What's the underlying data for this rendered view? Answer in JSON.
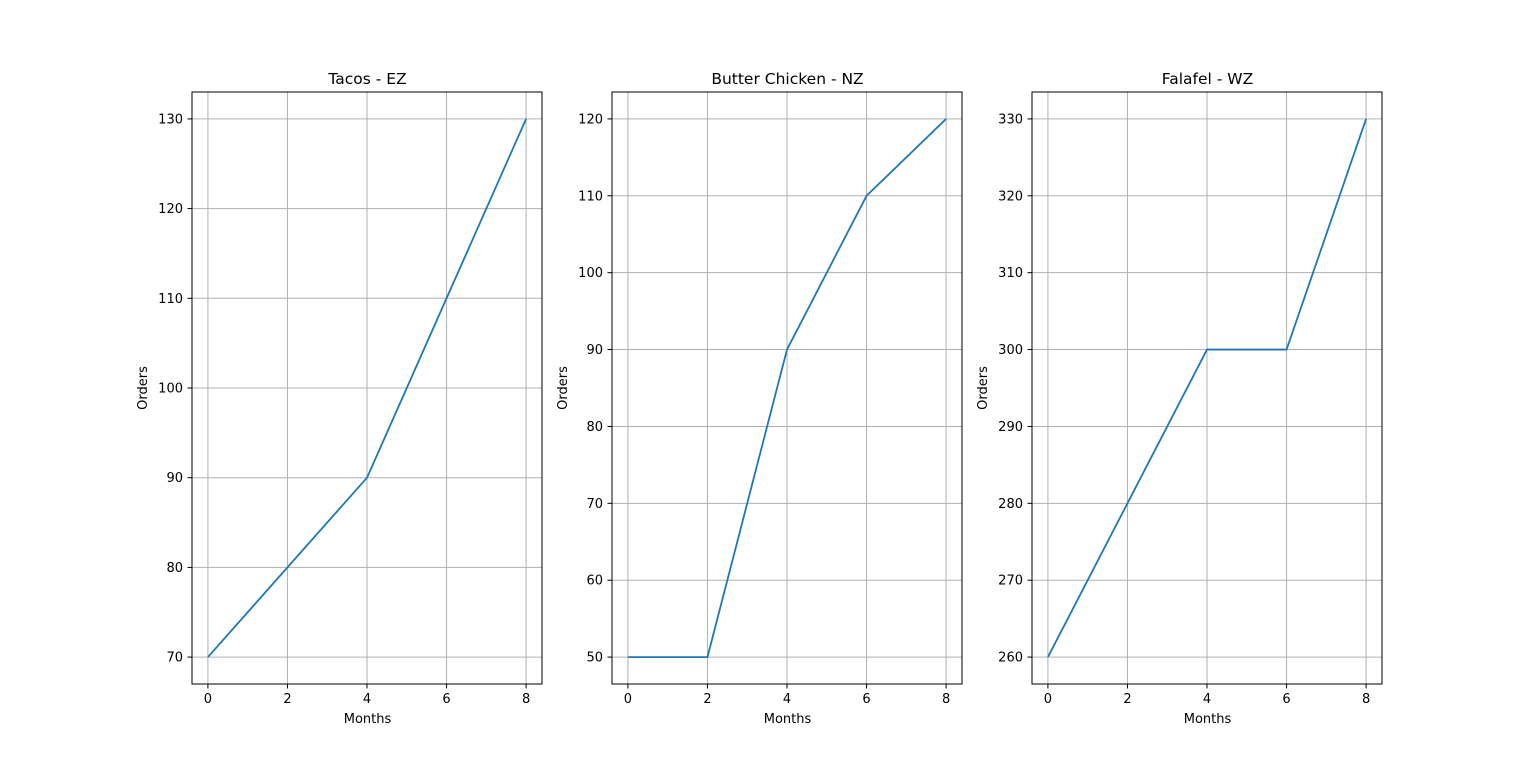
{
  "chart_data": [
    {
      "type": "line",
      "title": "Tacos - EZ",
      "xlabel": "Months",
      "ylabel": "Orders",
      "x": [
        0,
        2,
        4,
        6,
        8
      ],
      "series": [
        {
          "values": [
            70,
            80,
            90,
            110,
            130
          ],
          "color": "#1f77b4"
        }
      ],
      "xlim": [
        -0.4,
        8.4
      ],
      "ylim": [
        67,
        133
      ],
      "xticks": [
        0,
        2,
        4,
        6,
        8
      ],
      "yticks": [
        70,
        80,
        90,
        100,
        110,
        120,
        130
      ],
      "grid": true
    },
    {
      "type": "line",
      "title": "Butter Chicken - NZ",
      "xlabel": "Months",
      "ylabel": "Orders",
      "x": [
        0,
        2,
        4,
        6,
        8
      ],
      "series": [
        {
          "values": [
            50,
            50,
            90,
            110,
            120
          ],
          "color": "#1f77b4"
        }
      ],
      "xlim": [
        -0.4,
        8.4
      ],
      "ylim": [
        46.5,
        123.5
      ],
      "xticks": [
        0,
        2,
        4,
        6,
        8
      ],
      "yticks": [
        50,
        60,
        70,
        80,
        90,
        100,
        110,
        120
      ],
      "grid": true
    },
    {
      "type": "line",
      "title": "Falafel - WZ",
      "xlabel": "Months",
      "ylabel": "Orders",
      "x": [
        0,
        2,
        4,
        6,
        8
      ],
      "series": [
        {
          "values": [
            260,
            280,
            300,
            300,
            330
          ],
          "color": "#1f77b4"
        }
      ],
      "xlim": [
        -0.4,
        8.4
      ],
      "ylim": [
        256.5,
        333.5
      ],
      "xticks": [
        0,
        2,
        4,
        6,
        8
      ],
      "yticks": [
        260,
        270,
        280,
        290,
        300,
        310,
        320,
        330
      ],
      "grid": true
    }
  ]
}
